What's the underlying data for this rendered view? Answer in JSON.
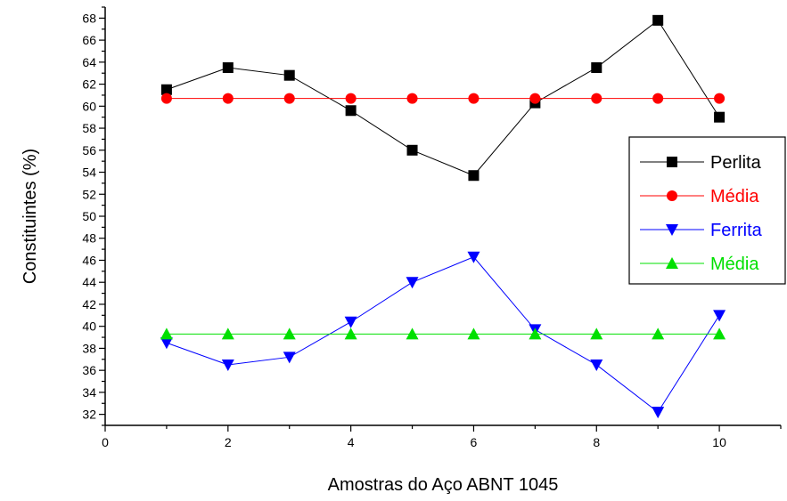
{
  "chart_data": {
    "type": "line",
    "xlabel": "Amostras do Aço ABNT 1045",
    "ylabel": "Constituintes  (%)",
    "xlim": [
      0,
      11
    ],
    "ylim": [
      31,
      69
    ],
    "xticks": [
      0,
      2,
      4,
      6,
      8,
      10
    ],
    "yticks": [
      32,
      34,
      36,
      38,
      40,
      42,
      44,
      46,
      48,
      50,
      52,
      54,
      56,
      58,
      60,
      62,
      64,
      66,
      68
    ],
    "grid": false,
    "legend_position": "right",
    "x": [
      1,
      2,
      3,
      4,
      5,
      6,
      7,
      8,
      9,
      10
    ],
    "series": [
      {
        "name": "Perlita",
        "marker": "square",
        "color": "#000000",
        "values": [
          61.5,
          63.5,
          62.8,
          59.6,
          56.0,
          53.7,
          60.3,
          63.5,
          67.8,
          59.0
        ]
      },
      {
        "name": "Média",
        "marker": "circle",
        "color": "#ff0000",
        "values": [
          60.7,
          60.7,
          60.7,
          60.7,
          60.7,
          60.7,
          60.7,
          60.7,
          60.7,
          60.7
        ]
      },
      {
        "name": "Ferrita",
        "marker": "triangle-down",
        "color": "#0000ff",
        "values": [
          38.5,
          36.5,
          37.2,
          40.4,
          44.0,
          46.3,
          39.7,
          36.5,
          32.2,
          41.0
        ]
      },
      {
        "name": "Média",
        "marker": "triangle-up",
        "color": "#00e000",
        "values": [
          39.3,
          39.3,
          39.3,
          39.3,
          39.3,
          39.3,
          39.3,
          39.3,
          39.3,
          39.3
        ]
      }
    ]
  }
}
